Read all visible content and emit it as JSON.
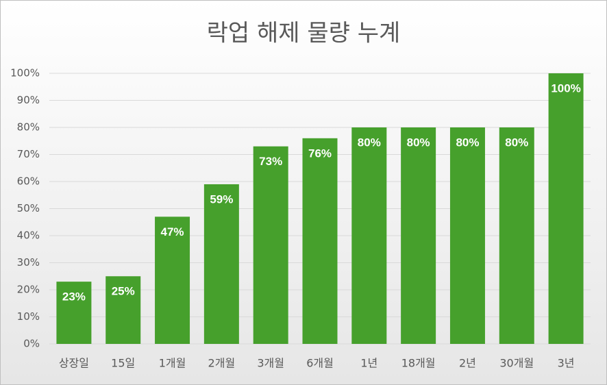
{
  "chart_data": {
    "type": "bar",
    "title": "락업 해제 물량 누계",
    "categories": [
      "상장일",
      "15일",
      "1개월",
      "2개월",
      "3개월",
      "6개월",
      "1년",
      "18개월",
      "2년",
      "30개월",
      "3년"
    ],
    "values": [
      23,
      25,
      47,
      59,
      73,
      76,
      80,
      80,
      80,
      80,
      100
    ],
    "value_labels": [
      "23%",
      "25%",
      "47%",
      "59%",
      "73%",
      "76%",
      "80%",
      "80%",
      "80%",
      "80%",
      "100%"
    ],
    "color": "#46a02c",
    "ylim": [
      0,
      100
    ],
    "yticks": [
      {
        "value": 0,
        "label": "0%"
      },
      {
        "value": 10,
        "label": "10%"
      },
      {
        "value": 20,
        "label": "20%"
      },
      {
        "value": 30,
        "label": "30%"
      },
      {
        "value": 40,
        "label": "40%"
      },
      {
        "value": 50,
        "label": "50%"
      },
      {
        "value": 60,
        "label": "60%"
      },
      {
        "value": 70,
        "label": "70%"
      },
      {
        "value": 80,
        "label": "80%"
      },
      {
        "value": 90,
        "label": "90%"
      },
      {
        "value": 100,
        "label": "100%"
      }
    ],
    "grid": true
  }
}
